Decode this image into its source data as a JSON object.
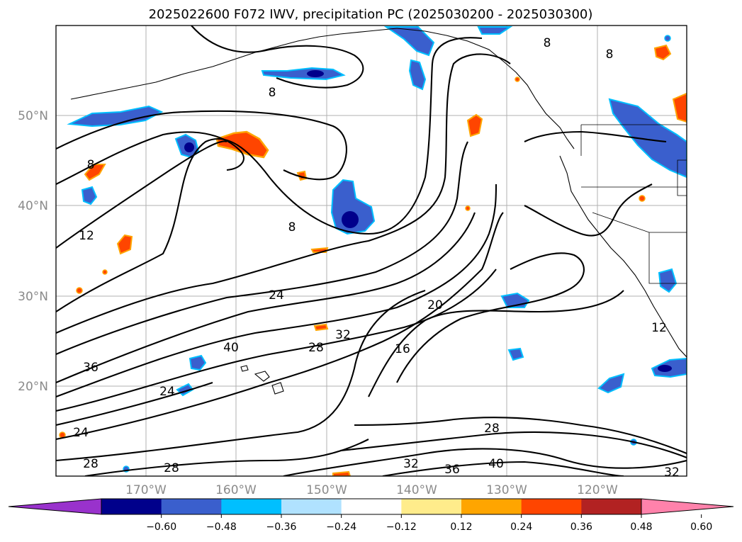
{
  "title": "2025022600 F072 IWV, precipitation PC (2025030200 - 2025030300)",
  "lat_labels": [
    "50°N",
    "40°N",
    "30°N",
    "20°N"
  ],
  "lon_labels": [
    "170°W",
    "160°W",
    "150°W",
    "140°W",
    "130°W",
    "120°W"
  ],
  "contour_labels": [
    "8",
    "8",
    "8",
    "8",
    "8",
    "12",
    "12",
    "16",
    "20",
    "24",
    "24",
    "24",
    "28",
    "28",
    "28",
    "28",
    "32",
    "32",
    "32",
    "36",
    "36",
    "40",
    "40"
  ],
  "colorbar": {
    "ticks": [
      "−0.60",
      "−0.48",
      "−0.36",
      "−0.24",
      "−0.12",
      "0.12",
      "0.24",
      "0.36",
      "0.48",
      "0.60"
    ],
    "colors": [
      "#9932cc",
      "#00008b",
      "#3a5fcd",
      "#00bfff",
      "#b0e2ff",
      "#ffffff",
      "#ffec8b",
      "#ffa500",
      "#ff4500",
      "#b22222",
      "#ff82ab"
    ]
  },
  "legend_colors": {
    "neg_strong": "#00008b",
    "neg_mid": "#3a5fcd",
    "neg_weak": "#00bfff",
    "neg_faint": "#b0e2ff",
    "pos_faint": "#ffec8b",
    "pos_weak": "#ffa500",
    "pos_mid": "#ff4500",
    "pos_strong": "#b22222"
  }
}
